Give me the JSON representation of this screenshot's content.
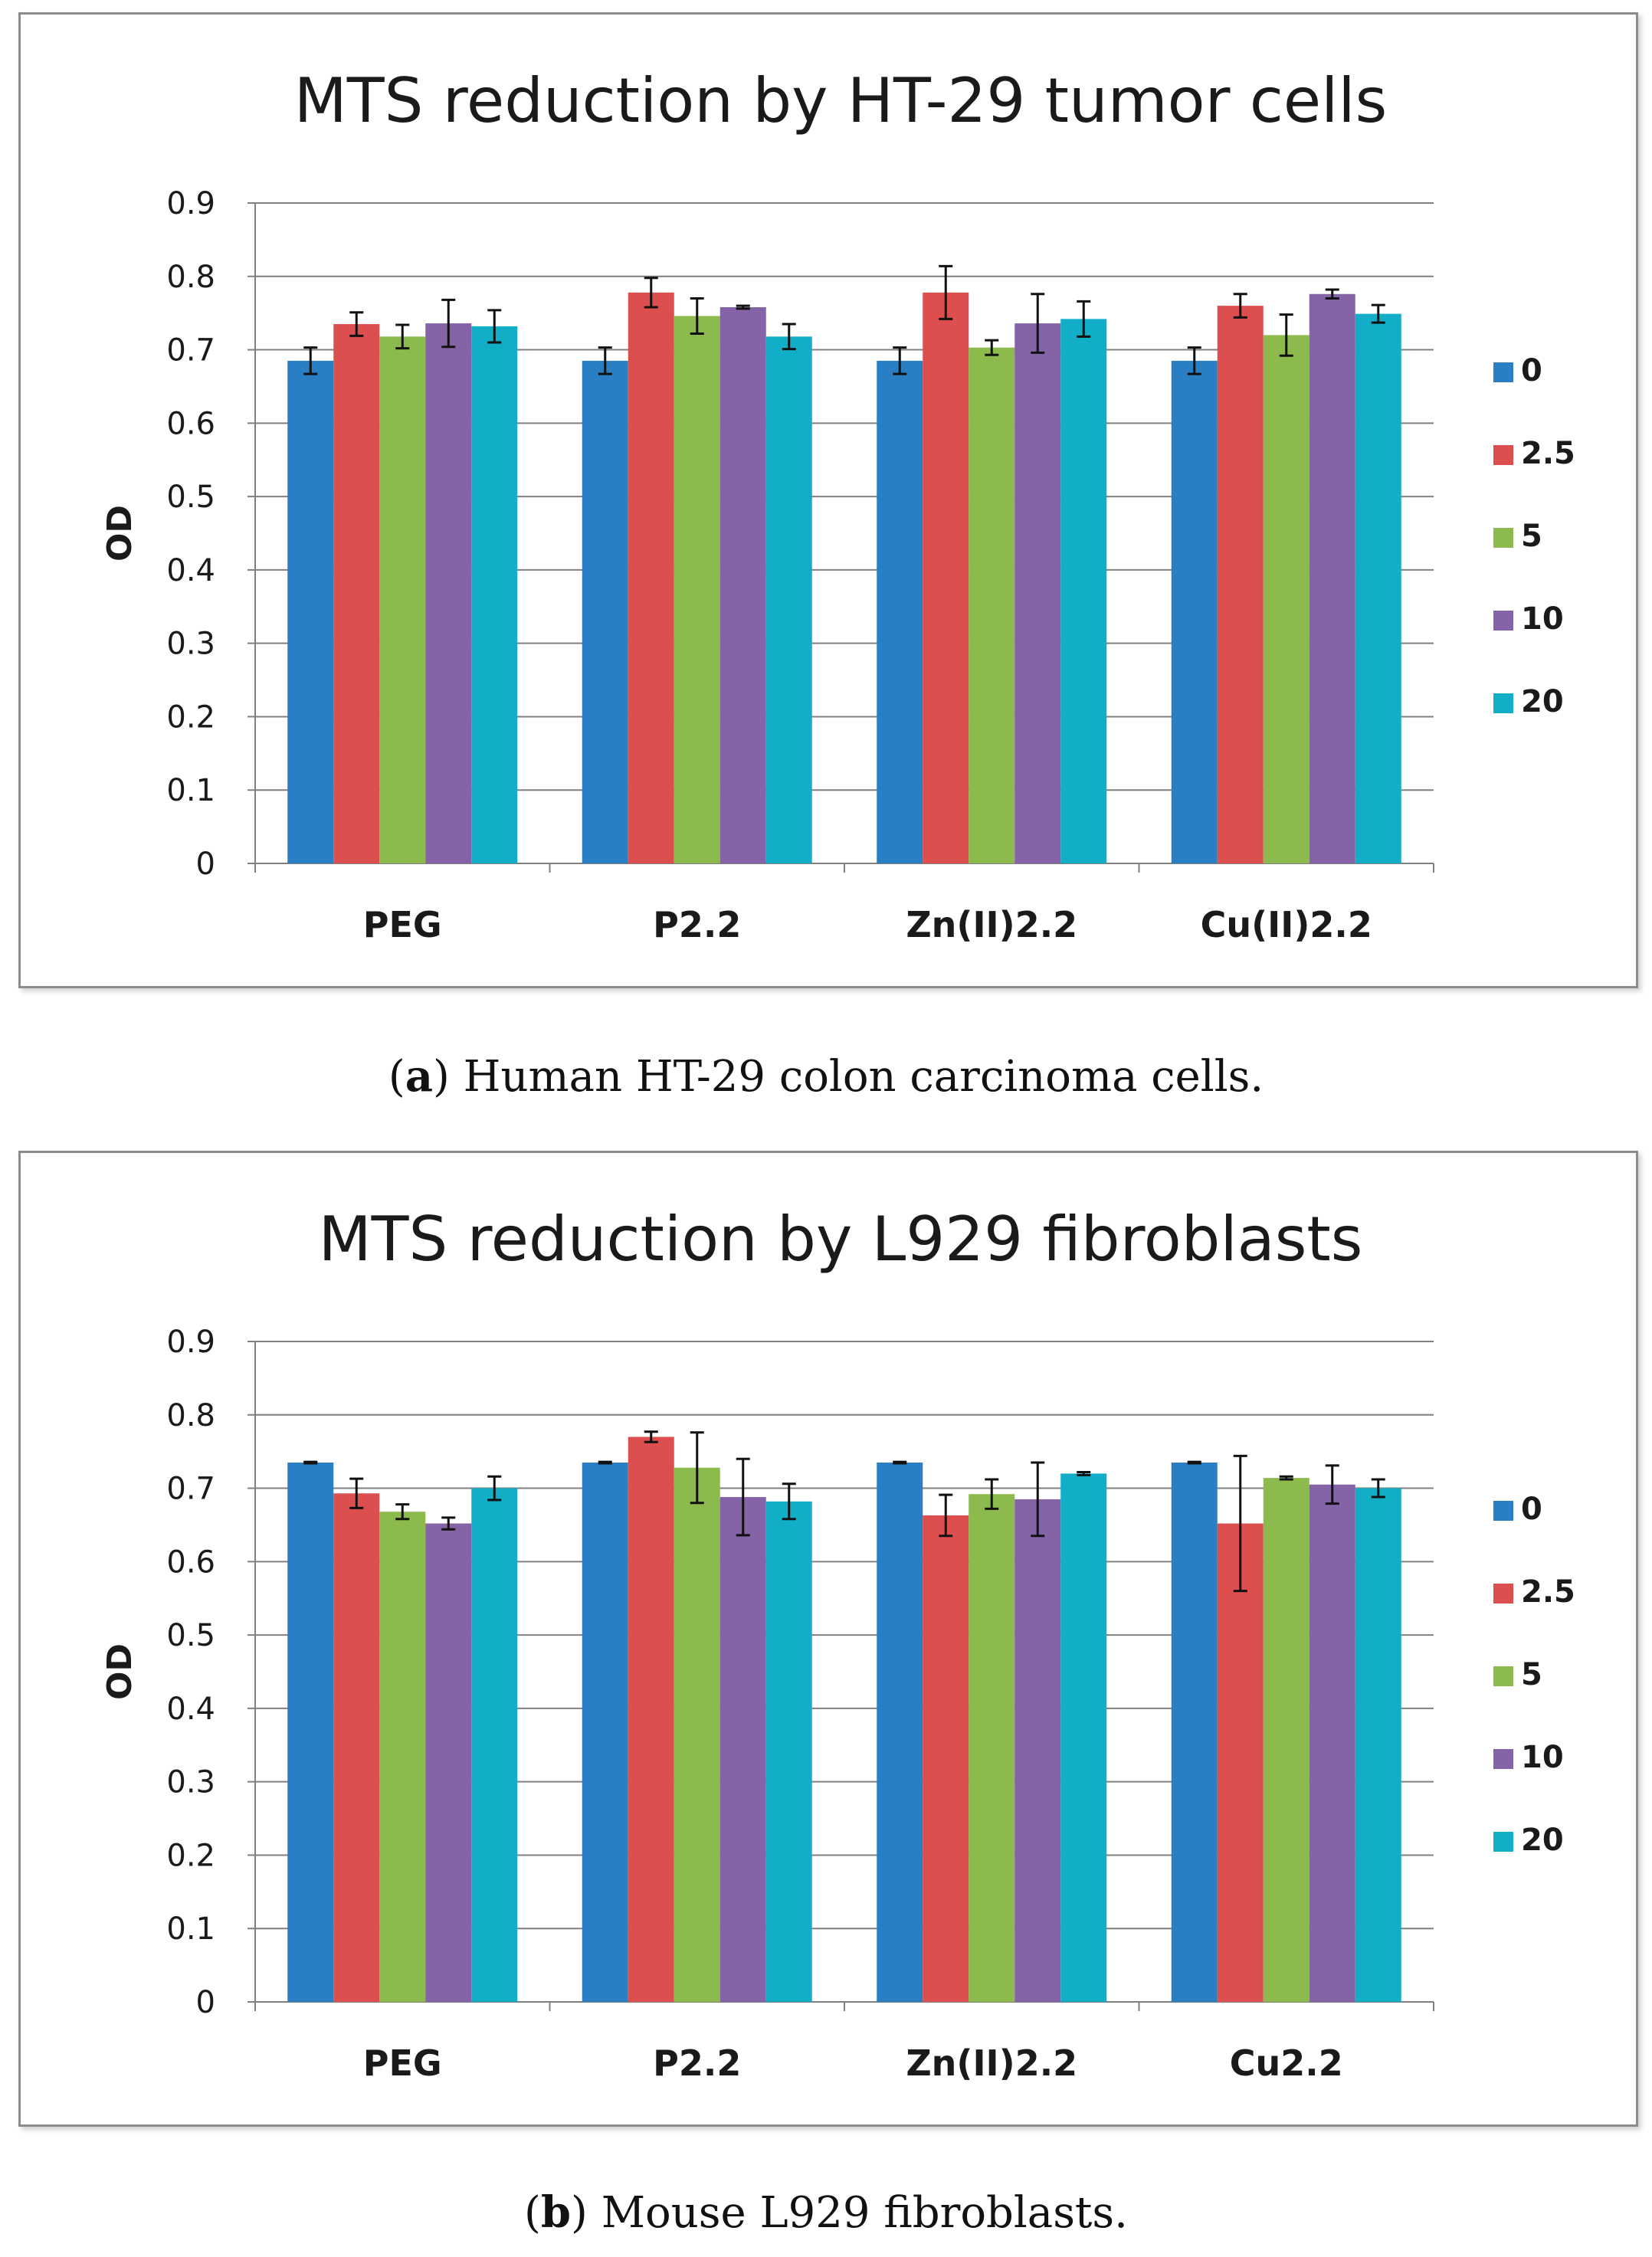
{
  "colors": {
    "series": [
      "#2a7ec3",
      "#dc4f4e",
      "#8cba4d",
      "#8463a7",
      "#12aec8"
    ],
    "axis": "#7f7f7f",
    "grid": "#7f7f7f",
    "text": "#1a1a1a"
  },
  "captions": {
    "a": {
      "letter": "a",
      "text": "Human HT-29 colon carcinoma cells."
    },
    "b": {
      "letter": "b",
      "text": "Mouse L929 fibroblasts."
    }
  },
  "chart_data": [
    {
      "type": "bar",
      "title": "MTS reduction by HT-29 tumor cells",
      "xlabel": "",
      "ylabel": "OD",
      "ylim": [
        0,
        0.9
      ],
      "yticks": [
        "0",
        "0.1",
        "0.2",
        "0.3",
        "0.4",
        "0.5",
        "0.6",
        "0.7",
        "0.8",
        "0.9"
      ],
      "grid": true,
      "legend_position": "right",
      "categories": [
        "PEG",
        "P2.2",
        "Zn(II)2.2",
        "Cu(II)2.2"
      ],
      "series": [
        {
          "name": "0",
          "values": [
            0.685,
            0.685,
            0.685,
            0.685
          ],
          "errors": [
            0.018,
            0.018,
            0.018,
            0.018
          ]
        },
        {
          "name": "2.5",
          "values": [
            0.735,
            0.778,
            0.778,
            0.76
          ],
          "errors": [
            0.016,
            0.02,
            0.036,
            0.016
          ]
        },
        {
          "name": "5",
          "values": [
            0.718,
            0.746,
            0.703,
            0.72
          ],
          "errors": [
            0.016,
            0.024,
            0.01,
            0.028
          ]
        },
        {
          "name": "10",
          "values": [
            0.736,
            0.758,
            0.736,
            0.776
          ],
          "errors": [
            0.032,
            0.002,
            0.04,
            0.006
          ]
        },
        {
          "name": "20",
          "values": [
            0.732,
            0.718,
            0.742,
            0.749
          ],
          "errors": [
            0.022,
            0.017,
            0.024,
            0.012
          ]
        }
      ]
    },
    {
      "type": "bar",
      "title": "MTS reduction by L929 fibroblasts",
      "xlabel": "",
      "ylabel": "OD",
      "ylim": [
        0,
        0.9
      ],
      "yticks": [
        "0",
        "0.1",
        "0.2",
        "0.3",
        "0.4",
        "0.5",
        "0.6",
        "0.7",
        "0.8",
        "0.9"
      ],
      "grid": true,
      "legend_position": "right",
      "categories": [
        "PEG",
        "P2.2",
        "Zn(II)2.2",
        "Cu2.2"
      ],
      "series": [
        {
          "name": "0",
          "values": [
            0.735,
            0.735,
            0.735,
            0.735
          ],
          "errors": [
            0.001,
            0.001,
            0.001,
            0.001
          ]
        },
        {
          "name": "2.5",
          "values": [
            0.693,
            0.77,
            0.663,
            0.652
          ],
          "errors": [
            0.02,
            0.007,
            0.028,
            0.092
          ]
        },
        {
          "name": "5",
          "values": [
            0.668,
            0.728,
            0.692,
            0.714
          ],
          "errors": [
            0.01,
            0.048,
            0.02,
            0.002
          ]
        },
        {
          "name": "10",
          "values": [
            0.652,
            0.688,
            0.685,
            0.705
          ],
          "errors": [
            0.008,
            0.052,
            0.05,
            0.026
          ]
        },
        {
          "name": "20",
          "values": [
            0.7,
            0.682,
            0.72,
            0.7
          ],
          "errors": [
            0.016,
            0.024,
            0.002,
            0.012
          ]
        }
      ]
    }
  ]
}
